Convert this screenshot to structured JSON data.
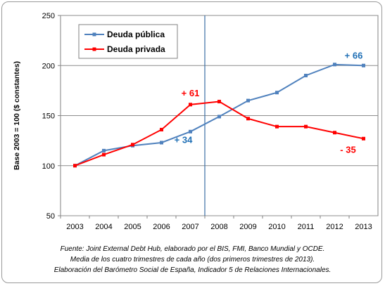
{
  "chart_data": {
    "type": "line",
    "ylabel": "Base 2003 = 100   ($ constantes)",
    "xlabel": "",
    "ylim": [
      50,
      250
    ],
    "yticks": [
      50,
      100,
      150,
      200,
      250
    ],
    "grid": true,
    "legend_position": "top-left",
    "categories": [
      "2003",
      "2004",
      "2005",
      "2006",
      "2007",
      "2008",
      "2009",
      "2010",
      "2011",
      "2012",
      "2013"
    ],
    "series": [
      {
        "name": "Deuda pública",
        "color": "#4f81bd",
        "values": [
          100,
          115,
          120,
          123,
          134,
          149,
          165,
          173,
          190,
          201,
          200
        ]
      },
      {
        "name": "Deuda privada",
        "color": "#ff0000",
        "values": [
          100,
          111,
          121,
          136,
          161,
          164,
          147,
          139,
          139,
          133,
          127
        ]
      }
    ],
    "vertical_marker_between": [
      "2007",
      "2008"
    ],
    "annotations": [
      {
        "text": "+ 66",
        "series": 0,
        "category": "2013",
        "color": "#1f6fb5"
      },
      {
        "text": "+ 61",
        "series": 1,
        "category": "2007",
        "color": "#ff0000"
      },
      {
        "text": "+ 34",
        "series": 0,
        "category": "2007",
        "color": "#1f6fb5"
      },
      {
        "text": "- 35",
        "series": 1,
        "category": "2013",
        "color": "#ff0000"
      }
    ]
  },
  "source_note": [
    "Fuente: Joint External Debt Hub, elaborado por el BIS, FMI, Banco Mundial y OCDE.",
    "Media de los cuatro trimestres de cada año (dos primeros trimestres de 2013).",
    "Elaboración del Barómetro Social de España, Indicador 5 de Relaciones Internacionales."
  ]
}
